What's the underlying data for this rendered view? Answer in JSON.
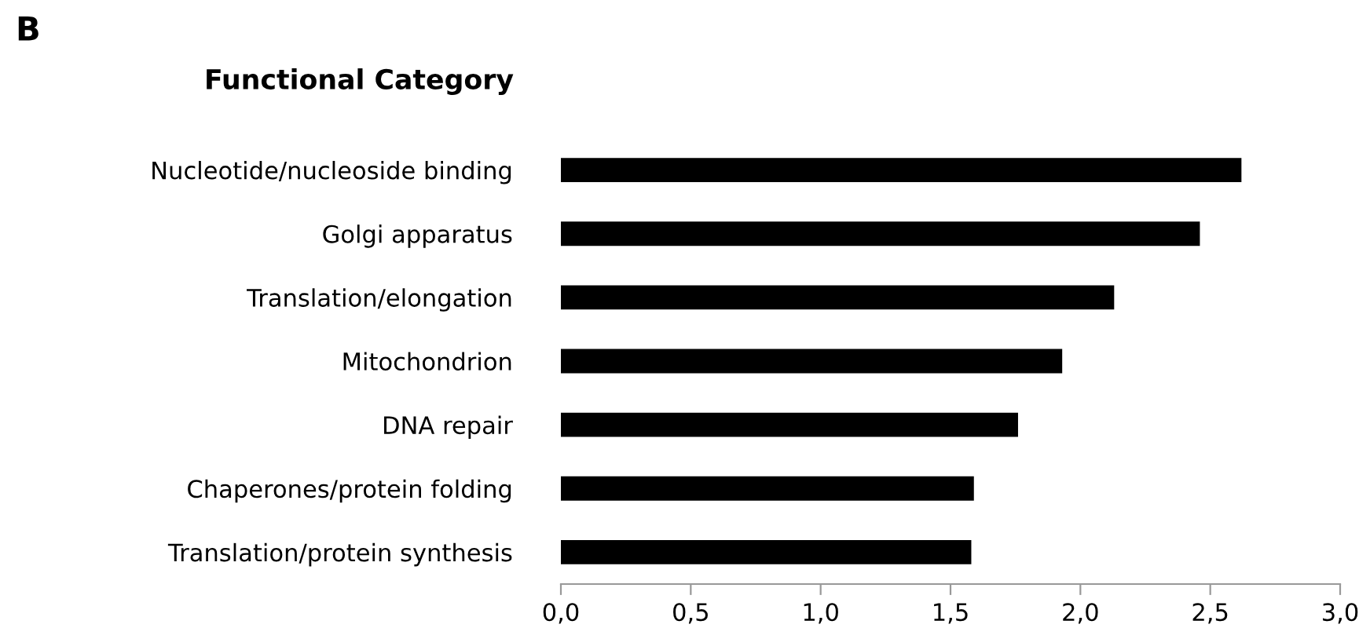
{
  "chart_data": {
    "type": "bar",
    "orientation": "horizontal",
    "title": "Functional Category",
    "annotations": [
      "B"
    ],
    "categories": [
      "Nucleotide/nucleoside binding",
      "Golgi apparatus",
      "Translation/elongation",
      "Mitochondrion",
      "DNA repair",
      "Chaperones/protein folding",
      "Translation/protein synthesis"
    ],
    "values": [
      2.62,
      2.46,
      2.13,
      1.93,
      1.76,
      1.59,
      1.58
    ],
    "color": "#000000",
    "xlim": [
      0,
      3
    ],
    "xticks": [
      {
        "value": 0,
        "label": "0,0"
      },
      {
        "value": 0.5,
        "label": "0,5"
      },
      {
        "value": 1,
        "label": "1,0"
      },
      {
        "value": 1.5,
        "label": "1,5"
      },
      {
        "value": 2,
        "label": "2,0"
      },
      {
        "value": 2.5,
        "label": "2,5"
      },
      {
        "value": 3,
        "label": "3,0"
      }
    ],
    "grid": false,
    "legend": false
  }
}
